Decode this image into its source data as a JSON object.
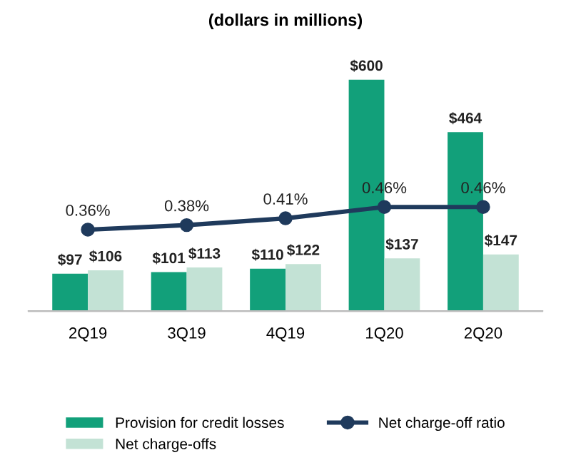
{
  "chart_data": {
    "type": "bar",
    "title": "(dollars in millions)",
    "categories": [
      "2Q19",
      "3Q19",
      "4Q19",
      "1Q20",
      "2Q20"
    ],
    "series": [
      {
        "name": "Provision for credit losses",
        "color": "#12a07a",
        "values": [
          97,
          101,
          110,
          600,
          464
        ],
        "value_labels": [
          "$97",
          "$101",
          "$110",
          "$600",
          "$464"
        ]
      },
      {
        "name": "Net charge-offs",
        "color": "#c3e2d5",
        "values": [
          106,
          113,
          122,
          137,
          147
        ],
        "value_labels": [
          "$106",
          "$113",
          "$122",
          "$137",
          "$147"
        ]
      },
      {
        "name": "Net charge-off ratio",
        "type": "line",
        "axis": "y2",
        "color": "#1f3a5c",
        "marker": "circle",
        "values": [
          0.36,
          0.38,
          0.41,
          0.46,
          0.46
        ],
        "value_labels": [
          "0.36%",
          "0.38%",
          "0.41%",
          "0.46%",
          "0.46%"
        ]
      }
    ],
    "grid": false,
    "legend": "bottom"
  }
}
